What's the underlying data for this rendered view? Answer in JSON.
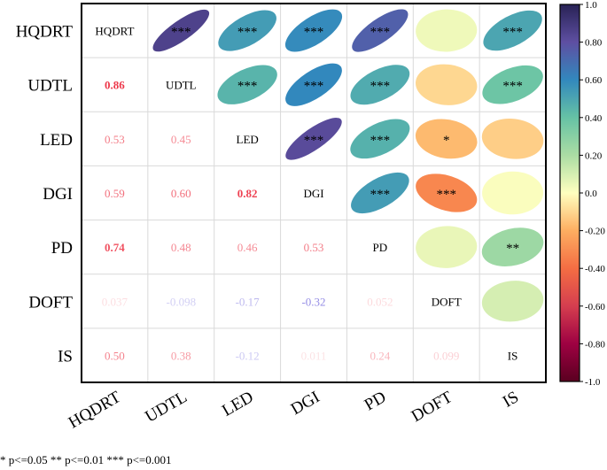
{
  "chart_data": {
    "type": "heatmap",
    "subtype": "correlation-matrix-ellipse",
    "variables": [
      "HQDRT",
      "UDTL",
      "LED",
      "DGI",
      "PD",
      "DOFT",
      "IS"
    ],
    "lower_triangle_labels": [
      [
        "HQDRT",
        "",
        "",
        "",
        "",
        "",
        ""
      ],
      [
        "0.86",
        "UDTL",
        "",
        "",
        "",
        "",
        ""
      ],
      [
        "0.53",
        "0.45",
        "LED",
        "",
        "",
        "",
        ""
      ],
      [
        "0.59",
        "0.60",
        "0.82",
        "DGI",
        "",
        "",
        ""
      ],
      [
        "0.74",
        "0.48",
        "0.46",
        "0.53",
        "PD",
        "",
        ""
      ],
      [
        "0.037",
        "-0.098",
        "-0.17",
        "-0.32",
        "0.052",
        "DOFT",
        ""
      ],
      [
        "0.50",
        "0.38",
        "-0.12",
        "0.011",
        "0.24",
        "0.099",
        "IS"
      ]
    ],
    "upper_triangle": [
      {
        "row": 0,
        "col": 1,
        "r": 0.86,
        "stars": "***"
      },
      {
        "row": 0,
        "col": 2,
        "r": 0.53,
        "stars": "***"
      },
      {
        "row": 0,
        "col": 3,
        "r": 0.59,
        "stars": "***"
      },
      {
        "row": 0,
        "col": 4,
        "r": 0.74,
        "stars": "***"
      },
      {
        "row": 0,
        "col": 5,
        "r": 0.037,
        "stars": ""
      },
      {
        "row": 0,
        "col": 6,
        "r": 0.5,
        "stars": "***"
      },
      {
        "row": 1,
        "col": 2,
        "r": 0.45,
        "stars": "***"
      },
      {
        "row": 1,
        "col": 3,
        "r": 0.6,
        "stars": "***"
      },
      {
        "row": 1,
        "col": 4,
        "r": 0.48,
        "stars": "***"
      },
      {
        "row": 1,
        "col": 5,
        "r": -0.098,
        "stars": ""
      },
      {
        "row": 1,
        "col": 6,
        "r": 0.38,
        "stars": "***"
      },
      {
        "row": 2,
        "col": 3,
        "r": 0.82,
        "stars": "***"
      },
      {
        "row": 2,
        "col": 4,
        "r": 0.46,
        "stars": "***"
      },
      {
        "row": 2,
        "col": 5,
        "r": -0.17,
        "stars": "*"
      },
      {
        "row": 2,
        "col": 6,
        "r": -0.12,
        "stars": ""
      },
      {
        "row": 3,
        "col": 4,
        "r": 0.53,
        "stars": "***"
      },
      {
        "row": 3,
        "col": 5,
        "r": -0.32,
        "stars": "***"
      },
      {
        "row": 3,
        "col": 6,
        "r": 0.011,
        "stars": ""
      },
      {
        "row": 4,
        "col": 5,
        "r": 0.052,
        "stars": ""
      },
      {
        "row": 4,
        "col": 6,
        "r": 0.24,
        "stars": "**"
      },
      {
        "row": 5,
        "col": 6,
        "r": 0.099,
        "stars": ""
      }
    ],
    "colorbar": {
      "range": [
        -1.0,
        1.0
      ],
      "ticks": [
        "1.0",
        "0.80",
        "0.60",
        "0.40",
        "0.20",
        "0.0",
        "-0.20",
        "-0.40",
        "-0.60",
        "-0.80",
        "-1.0"
      ],
      "colormap": "Spectral"
    },
    "significance_note": "* p<=0.05  ** p<=0.01  *** p<=0.001"
  }
}
